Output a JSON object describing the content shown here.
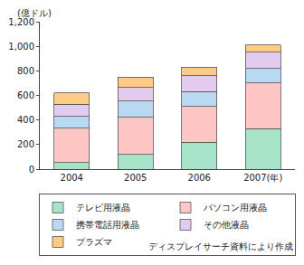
{
  "chart_data": {
    "type": "bar",
    "stacked": true,
    "y_label": "(億ドル)",
    "annotations": [
      "ディスプレイサーチ資料により作成"
    ],
    "categories": [
      "2004",
      "2005",
      "2006",
      "2007(年)"
    ],
    "series": [
      {
        "name": "テレビ用液晶",
        "color": "#a6e3c9",
        "values": [
          55,
          120,
          220,
          330
        ]
      },
      {
        "name": "パソコン用液晶",
        "color": "#ffc6c6",
        "values": [
          280,
          300,
          290,
          370
        ]
      },
      {
        "name": "携帯電話用液晶",
        "color": "#b9d9f2",
        "values": [
          95,
          135,
          120,
          120
        ]
      },
      {
        "name": "その他液晶",
        "color": "#e3cbf0",
        "values": [
          100,
          110,
          130,
          130
        ]
      },
      {
        "name": "プラズマ",
        "color": "#ffca85",
        "values": [
          90,
          85,
          70,
          60
        ]
      }
    ],
    "ylim": [
      0,
      1200
    ],
    "yticks": [
      0,
      200,
      400,
      600,
      800,
      {
        "value": 1000,
        "label": "1,000"
      },
      {
        "value": 1200,
        "label": "1,200"
      }
    ],
    "grid": false,
    "legend": "bottom"
  }
}
